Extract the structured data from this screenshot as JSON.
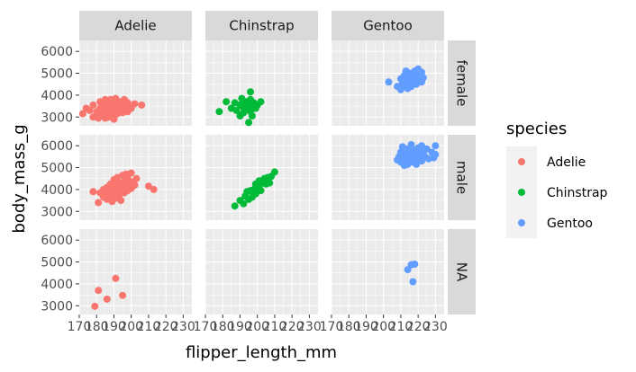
{
  "chart_data": {
    "type": "scatter",
    "facet": "grid",
    "xlabel": "flipper_length_mm",
    "ylabel": "body_mass_g",
    "xlim": [
      170,
      235
    ],
    "ylim": [
      2600,
      6500
    ],
    "x_ticks": [
      170,
      180,
      190,
      200,
      210,
      220,
      230
    ],
    "x_tick_labels": [
      "170",
      "180",
      "190",
      "200",
      "210",
      "220",
      "230"
    ],
    "y_ticks": [
      3000,
      4000,
      5000,
      6000
    ],
    "y_tick_labels": [
      "3000",
      "4000",
      "5000",
      "6000"
    ],
    "columns": [
      "Adelie",
      "Chinstrap",
      "Gentoo"
    ],
    "rows": [
      "female",
      "male",
      "NA"
    ],
    "legend": {
      "title": "species",
      "position": "right",
      "entries": [
        {
          "label": "Adelie",
          "color": "#F8766D"
        },
        {
          "label": "Chinstrap",
          "color": "#00BA38"
        },
        {
          "label": "Gentoo",
          "color": "#619CFF"
        }
      ]
    },
    "series": [
      {
        "name": "Adelie",
        "sex": "female",
        "points": [
          [
            172,
            3150
          ],
          [
            174,
            3400
          ],
          [
            176,
            3300
          ],
          [
            178,
            3000
          ],
          [
            178,
            3550
          ],
          [
            180,
            3250
          ],
          [
            181,
            2950
          ],
          [
            182,
            3400
          ],
          [
            182,
            3700
          ],
          [
            183,
            3100
          ],
          [
            184,
            3300
          ],
          [
            184,
            3550
          ],
          [
            185,
            3800
          ],
          [
            185,
            2950
          ],
          [
            186,
            3200
          ],
          [
            186,
            3450
          ],
          [
            187,
            3000
          ],
          [
            187,
            3650
          ],
          [
            188,
            3350
          ],
          [
            188,
            3800
          ],
          [
            189,
            3100
          ],
          [
            189,
            3500
          ],
          [
            190,
            3250
          ],
          [
            190,
            3700
          ],
          [
            190,
            2900
          ],
          [
            191,
            3400
          ],
          [
            191,
            3850
          ],
          [
            192,
            3150
          ],
          [
            192,
            3550
          ],
          [
            193,
            3300
          ],
          [
            193,
            3700
          ],
          [
            194,
            3450
          ],
          [
            195,
            3200
          ],
          [
            195,
            3600
          ],
          [
            196,
            3350
          ],
          [
            196,
            3800
          ],
          [
            197,
            3500
          ],
          [
            198,
            3250
          ],
          [
            198,
            3650
          ],
          [
            200,
            3400
          ],
          [
            202,
            3600
          ],
          [
            206,
            3550
          ]
        ]
      },
      {
        "name": "Chinstrap",
        "sex": "female",
        "points": [
          [
            178,
            3250
          ],
          [
            182,
            3700
          ],
          [
            185,
            3400
          ],
          [
            187,
            3650
          ],
          [
            188,
            3300
          ],
          [
            190,
            3550
          ],
          [
            190,
            3050
          ],
          [
            191,
            3850
          ],
          [
            192,
            3200
          ],
          [
            192,
            3450
          ],
          [
            193,
            3700
          ],
          [
            194,
            3350
          ],
          [
            195,
            3550
          ],
          [
            196,
            3250
          ],
          [
            196,
            3800
          ],
          [
            197,
            3450
          ],
          [
            197,
            3050
          ],
          [
            198,
            3650
          ],
          [
            199,
            3400
          ],
          [
            200,
            3550
          ],
          [
            202,
            3700
          ],
          [
            195,
            2750
          ],
          [
            196,
            4150
          ]
        ]
      },
      {
        "name": "Gentoo",
        "sex": "female",
        "points": [
          [
            203,
            4600
          ],
          [
            208,
            4400
          ],
          [
            210,
            4250
          ],
          [
            210,
            4750
          ],
          [
            211,
            4550
          ],
          [
            212,
            4900
          ],
          [
            212,
            4450
          ],
          [
            213,
            4650
          ],
          [
            213,
            5100
          ],
          [
            214,
            4300
          ],
          [
            214,
            4800
          ],
          [
            215,
            4550
          ],
          [
            215,
            5000
          ],
          [
            216,
            4700
          ],
          [
            216,
            4400
          ],
          [
            217,
            4900
          ],
          [
            217,
            4600
          ],
          [
            218,
            5100
          ],
          [
            218,
            4750
          ],
          [
            219,
            4500
          ],
          [
            219,
            4950
          ],
          [
            220,
            4700
          ],
          [
            220,
            5200
          ],
          [
            221,
            4850
          ],
          [
            222,
            4600
          ],
          [
            222,
            5050
          ],
          [
            223,
            4800
          ]
        ]
      },
      {
        "name": "Adelie",
        "sex": "male",
        "points": [
          [
            178,
            3900
          ],
          [
            181,
            3400
          ],
          [
            182,
            3850
          ],
          [
            184,
            3650
          ],
          [
            184,
            4000
          ],
          [
            185,
            3750
          ],
          [
            186,
            3550
          ],
          [
            186,
            4100
          ],
          [
            187,
            3900
          ],
          [
            188,
            3700
          ],
          [
            188,
            4250
          ],
          [
            189,
            3450
          ],
          [
            189,
            4050
          ],
          [
            190,
            3800
          ],
          [
            190,
            4450
          ],
          [
            191,
            3600
          ],
          [
            191,
            4150
          ],
          [
            192,
            3950
          ],
          [
            192,
            4550
          ],
          [
            193,
            3750
          ],
          [
            193,
            4300
          ],
          [
            194,
            4000
          ],
          [
            194,
            3500
          ],
          [
            195,
            4200
          ],
          [
            195,
            4650
          ],
          [
            196,
            3850
          ],
          [
            196,
            4400
          ],
          [
            197,
            4100
          ],
          [
            197,
            4700
          ],
          [
            198,
            3950
          ],
          [
            198,
            4500
          ],
          [
            199,
            4250
          ],
          [
            200,
            4050
          ],
          [
            200,
            4750
          ],
          [
            201,
            4350
          ],
          [
            202,
            4200
          ],
          [
            203,
            4500
          ],
          [
            210,
            4150
          ],
          [
            213,
            4000
          ]
        ]
      },
      {
        "name": "Chinstrap",
        "sex": "male",
        "points": [
          [
            187,
            3250
          ],
          [
            190,
            3500
          ],
          [
            192,
            3350
          ],
          [
            193,
            3700
          ],
          [
            194,
            3900
          ],
          [
            195,
            3550
          ],
          [
            196,
            3950
          ],
          [
            197,
            3650
          ],
          [
            198,
            4000
          ],
          [
            199,
            3800
          ],
          [
            199,
            4250
          ],
          [
            200,
            3950
          ],
          [
            201,
            4100
          ],
          [
            201,
            4400
          ],
          [
            202,
            3950
          ],
          [
            203,
            4300
          ],
          [
            204,
            4500
          ],
          [
            205,
            4250
          ],
          [
            206,
            4550
          ],
          [
            207,
            4300
          ],
          [
            208,
            4600
          ],
          [
            210,
            4800
          ]
        ]
      },
      {
        "name": "Gentoo",
        "sex": "male",
        "points": [
          [
            208,
            5350
          ],
          [
            209,
            5500
          ],
          [
            210,
            5250
          ],
          [
            210,
            5700
          ],
          [
            211,
            5400
          ],
          [
            211,
            5950
          ],
          [
            212,
            5100
          ],
          [
            212,
            5600
          ],
          [
            213,
            5300
          ],
          [
            213,
            5850
          ],
          [
            214,
            5150
          ],
          [
            214,
            5500
          ],
          [
            215,
            5750
          ],
          [
            215,
            5350
          ],
          [
            216,
            5600
          ],
          [
            216,
            6050
          ],
          [
            217,
            5250
          ],
          [
            217,
            5450
          ],
          [
            218,
            5800
          ],
          [
            218,
            5500
          ],
          [
            219,
            5150
          ],
          [
            219,
            5650
          ],
          [
            220,
            5900
          ],
          [
            220,
            5400
          ],
          [
            221,
            5600
          ],
          [
            222,
            6000
          ],
          [
            222,
            5300
          ],
          [
            223,
            5700
          ],
          [
            224,
            5500
          ],
          [
            225,
            5850
          ],
          [
            226,
            5400
          ],
          [
            228,
            5700
          ],
          [
            229,
            5450
          ],
          [
            230,
            5600
          ],
          [
            230,
            6000
          ]
        ]
      },
      {
        "name": "Adelie",
        "sex": "NA",
        "points": [
          [
            179,
            2975
          ],
          [
            181,
            3700
          ],
          [
            186,
            3300
          ],
          [
            191,
            4250
          ],
          [
            195,
            3475
          ]
        ]
      },
      {
        "name": "Chinstrap",
        "sex": "NA",
        "points": []
      },
      {
        "name": "Gentoo",
        "sex": "NA",
        "points": [
          [
            214,
            4650
          ],
          [
            216,
            4875
          ],
          [
            217,
            4100
          ],
          [
            218,
            4900
          ]
        ]
      }
    ]
  }
}
